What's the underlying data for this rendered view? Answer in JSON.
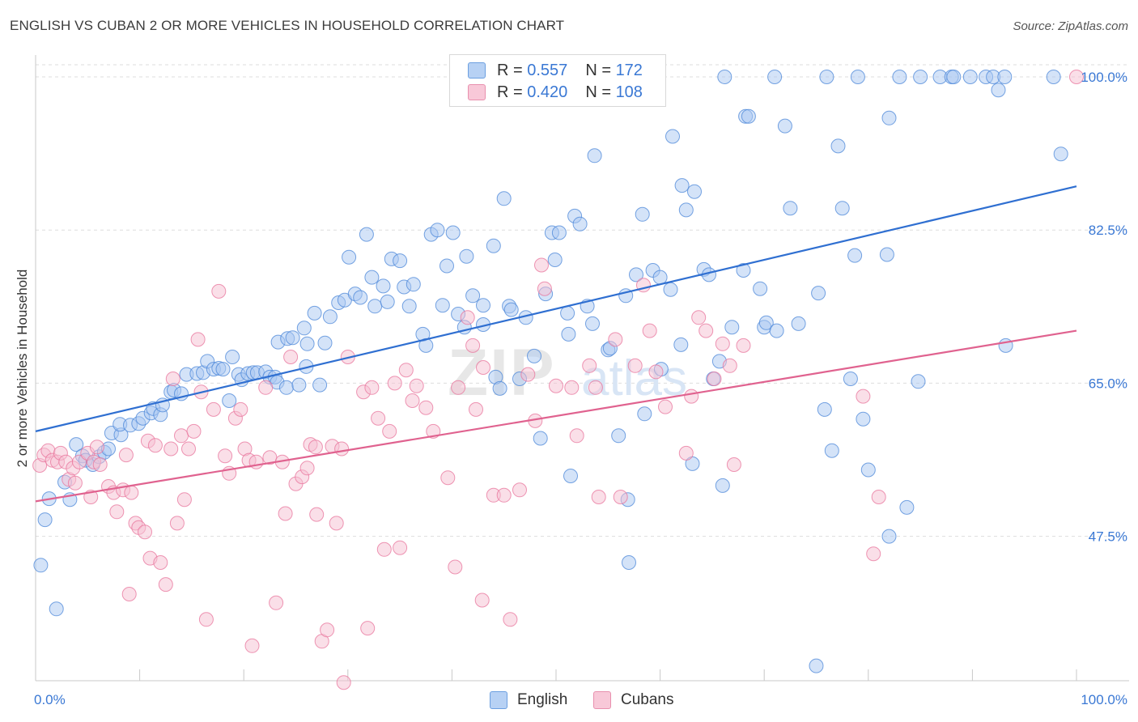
{
  "header": {
    "title": "ENGLISH VS CUBAN 2 OR MORE VEHICLES IN HOUSEHOLD CORRELATION CHART",
    "source": "Source: ZipAtlas.com"
  },
  "watermark": "ZIPatlas",
  "colors": {
    "english": "#4a86d8",
    "english_fill": "#a9c8f2",
    "cubans": "#e8739b",
    "cubans_fill": "#f6bfd1",
    "axis_tick_label": "#3a78d4",
    "grid": "#dddddd"
  },
  "legend": {
    "rows": [
      {
        "r_label": "R =",
        "r_value": "0.557",
        "n_label": "N =",
        "n_value": "172"
      },
      {
        "r_label": "R =",
        "r_value": "0.420",
        "n_label": "N =",
        "n_value": "108"
      }
    ]
  },
  "bottom_legend": {
    "english": "English",
    "cubans": "Cubans"
  },
  "chart_data": {
    "type": "scatter",
    "title": "ENGLISH VS CUBAN 2 OR MORE VEHICLES IN HOUSEHOLD CORRELATION CHART",
    "ylabel": "2 or more Vehicles in Household",
    "xlabel": "",
    "xlim": [
      0,
      100
    ],
    "ylim": [
      31,
      102.5
    ],
    "x_tick_labels": [
      "0.0%",
      "100.0%"
    ],
    "y_ticks": [
      47.5,
      65.0,
      82.5,
      100.0
    ],
    "y_tick_labels": [
      "47.5%",
      "65.0%",
      "82.5%",
      "100.0%"
    ],
    "grid": "horizontal dashed",
    "legend_position": "top-center",
    "series": [
      {
        "name": "English",
        "trend": {
          "x": [
            0,
            100
          ],
          "y": [
            59.5,
            87.5
          ]
        },
        "points": [
          [
            0.5,
            44.2
          ],
          [
            0.9,
            49.4
          ],
          [
            1.3,
            51.8
          ],
          [
            2.0,
            39.2
          ],
          [
            2.8,
            53.7
          ],
          [
            3.3,
            51.7
          ],
          [
            3.9,
            58.0
          ],
          [
            4.5,
            56.7
          ],
          [
            4.8,
            56.2
          ],
          [
            5.5,
            55.7
          ],
          [
            6.1,
            56.6
          ],
          [
            6.6,
            57.1
          ],
          [
            7.0,
            57.5
          ],
          [
            7.3,
            59.3
          ],
          [
            8.2,
            59.1
          ],
          [
            8.1,
            60.3
          ],
          [
            9.1,
            60.2
          ],
          [
            9.9,
            60.4
          ],
          [
            10.3,
            61.0
          ],
          [
            11.1,
            61.6
          ],
          [
            11.3,
            62.1
          ],
          [
            12.0,
            61.4
          ],
          [
            12.2,
            62.5
          ],
          [
            13.0,
            64.0
          ],
          [
            13.3,
            64.2
          ],
          [
            14.0,
            63.8
          ],
          [
            14.5,
            66.0
          ],
          [
            15.5,
            66.1
          ],
          [
            16.1,
            66.2
          ],
          [
            16.5,
            67.5
          ],
          [
            17.1,
            66.6
          ],
          [
            17.6,
            66.7
          ],
          [
            18.0,
            66.6
          ],
          [
            18.6,
            63.0
          ],
          [
            18.9,
            68.0
          ],
          [
            19.5,
            66.0
          ],
          [
            19.8,
            65.4
          ],
          [
            20.4,
            66.1
          ],
          [
            20.9,
            66.2
          ],
          [
            21.3,
            66.2
          ],
          [
            22.1,
            66.3
          ],
          [
            22.5,
            65.7
          ],
          [
            23.0,
            65.7
          ],
          [
            23.2,
            65.1
          ],
          [
            23.3,
            69.7
          ],
          [
            24.1,
            64.5
          ],
          [
            24.2,
            70.1
          ],
          [
            24.7,
            70.2
          ],
          [
            25.3,
            64.8
          ],
          [
            25.8,
            71.3
          ],
          [
            26.0,
            66.9
          ],
          [
            26.1,
            69.5
          ],
          [
            26.8,
            73.0
          ],
          [
            27.3,
            64.8
          ],
          [
            27.8,
            69.6
          ],
          [
            28.3,
            72.6
          ],
          [
            29.1,
            74.2
          ],
          [
            29.7,
            74.5
          ],
          [
            30.1,
            79.4
          ],
          [
            30.7,
            75.2
          ],
          [
            31.2,
            74.8
          ],
          [
            31.8,
            82.0
          ],
          [
            32.3,
            77.1
          ],
          [
            32.6,
            73.8
          ],
          [
            33.4,
            76.1
          ],
          [
            33.8,
            74.3
          ],
          [
            34.2,
            79.2
          ],
          [
            35.0,
            79.0
          ],
          [
            35.4,
            76.0
          ],
          [
            35.9,
            73.8
          ],
          [
            36.3,
            76.3
          ],
          [
            37.2,
            70.6
          ],
          [
            37.5,
            69.3
          ],
          [
            38.0,
            82.0
          ],
          [
            38.6,
            82.5
          ],
          [
            39.1,
            73.9
          ],
          [
            39.5,
            78.4
          ],
          [
            40.1,
            82.2
          ],
          [
            40.6,
            72.9
          ],
          [
            41.2,
            71.4
          ],
          [
            41.4,
            79.5
          ],
          [
            42.0,
            75.0
          ],
          [
            43.0,
            71.7
          ],
          [
            43.0,
            73.9
          ],
          [
            44.0,
            80.7
          ],
          [
            44.2,
            65.7
          ],
          [
            44.6,
            64.4
          ],
          [
            45.0,
            86.1
          ],
          [
            45.5,
            73.8
          ],
          [
            45.7,
            73.4
          ],
          [
            46.5,
            65.5
          ],
          [
            47.1,
            72.5
          ],
          [
            47.9,
            68.1
          ],
          [
            48.5,
            58.7
          ],
          [
            49.0,
            75.2
          ],
          [
            49.6,
            82.2
          ],
          [
            49.9,
            79.1
          ],
          [
            50.3,
            82.2
          ],
          [
            51.1,
            73.0
          ],
          [
            51.2,
            70.6
          ],
          [
            51.4,
            54.4
          ],
          [
            51.8,
            84.1
          ],
          [
            52.3,
            83.2
          ],
          [
            53.0,
            73.8
          ],
          [
            53.5,
            71.8
          ],
          [
            53.7,
            91.0
          ],
          [
            55.0,
            68.8
          ],
          [
            55.2,
            69.0
          ],
          [
            56.0,
            59.0
          ],
          [
            56.7,
            75.0
          ],
          [
            56.9,
            51.7
          ],
          [
            57.0,
            44.5
          ],
          [
            57.7,
            77.4
          ],
          [
            58.3,
            84.3
          ],
          [
            58.5,
            61.5
          ],
          [
            59.3,
            77.9
          ],
          [
            60.0,
            77.1
          ],
          [
            60.1,
            66.6
          ],
          [
            61.0,
            75.7
          ],
          [
            61.2,
            93.2
          ],
          [
            62.0,
            69.4
          ],
          [
            62.1,
            87.6
          ],
          [
            62.5,
            84.8
          ],
          [
            63.1,
            55.8
          ],
          [
            63.3,
            86.9
          ],
          [
            64.2,
            78.0
          ],
          [
            64.7,
            77.4
          ],
          [
            65.1,
            65.5
          ],
          [
            65.7,
            67.5
          ],
          [
            66.0,
            53.3
          ],
          [
            66.9,
            71.4
          ],
          [
            68.0,
            77.9
          ],
          [
            68.2,
            95.5
          ],
          [
            68.5,
            95.5
          ],
          [
            69.6,
            75.8
          ],
          [
            70.0,
            71.4
          ],
          [
            70.2,
            71.9
          ],
          [
            71.2,
            71.0
          ],
          [
            72.0,
            94.4
          ],
          [
            72.5,
            85.0
          ],
          [
            73.3,
            71.8
          ],
          [
            75.0,
            32.7
          ],
          [
            75.2,
            75.3
          ],
          [
            75.8,
            62.0
          ],
          [
            76.5,
            57.3
          ],
          [
            77.1,
            92.1
          ],
          [
            77.5,
            85.0
          ],
          [
            78.3,
            65.5
          ],
          [
            78.7,
            79.6
          ],
          [
            79.5,
            60.9
          ],
          [
            80.0,
            55.1
          ],
          [
            81.8,
            79.7
          ],
          [
            82.0,
            95.3
          ],
          [
            82.0,
            47.5
          ],
          [
            83.7,
            50.8
          ],
          [
            84.8,
            65.2
          ],
          [
            85.0,
            100.0
          ],
          [
            86.9,
            100.0
          ],
          [
            88.0,
            100.0
          ],
          [
            89.8,
            100.0
          ],
          [
            91.3,
            100.0
          ],
          [
            92.0,
            100.0
          ],
          [
            92.5,
            98.5
          ],
          [
            93.1,
            100.0
          ],
          [
            93.2,
            69.3
          ],
          [
            97.8,
            100.0
          ],
          [
            98.5,
            91.2
          ],
          [
            66.2,
            100.0
          ],
          [
            71.0,
            100.0
          ],
          [
            76.0,
            100.0
          ],
          [
            79.0,
            100.0
          ],
          [
            83.0,
            100.0
          ],
          [
            88.2,
            100.0
          ]
        ]
      },
      {
        "name": "Cubans",
        "trend": {
          "x": [
            0,
            100
          ],
          "y": [
            51.5,
            71.0
          ]
        },
        "points": [
          [
            0.4,
            55.6
          ],
          [
            0.8,
            56.8
          ],
          [
            1.2,
            57.3
          ],
          [
            1.6,
            56.2
          ],
          [
            2.1,
            56.0
          ],
          [
            2.4,
            57.0
          ],
          [
            2.9,
            56.0
          ],
          [
            3.2,
            54.0
          ],
          [
            3.6,
            55.3
          ],
          [
            3.8,
            53.6
          ],
          [
            4.2,
            56.0
          ],
          [
            5.0,
            57.0
          ],
          [
            5.3,
            52.0
          ],
          [
            5.6,
            56.0
          ],
          [
            5.9,
            57.7
          ],
          [
            6.2,
            55.7
          ],
          [
            7.0,
            53.2
          ],
          [
            7.5,
            52.5
          ],
          [
            7.8,
            50.3
          ],
          [
            8.4,
            52.8
          ],
          [
            8.7,
            56.8
          ],
          [
            9.0,
            40.9
          ],
          [
            9.2,
            52.5
          ],
          [
            9.6,
            49.0
          ],
          [
            9.9,
            48.5
          ],
          [
            10.5,
            48.0
          ],
          [
            10.8,
            58.4
          ],
          [
            11.0,
            45.0
          ],
          [
            11.5,
            57.9
          ],
          [
            12.0,
            44.5
          ],
          [
            12.5,
            42.0
          ],
          [
            13.0,
            57.5
          ],
          [
            13.2,
            65.5
          ],
          [
            13.6,
            49.0
          ],
          [
            14.0,
            59.0
          ],
          [
            14.3,
            51.7
          ],
          [
            14.7,
            57.5
          ],
          [
            15.2,
            59.5
          ],
          [
            15.6,
            70.0
          ],
          [
            15.9,
            64.0
          ],
          [
            16.4,
            38.0
          ],
          [
            17.1,
            62.0
          ],
          [
            17.6,
            75.5
          ],
          [
            18.2,
            56.7
          ],
          [
            18.6,
            54.7
          ],
          [
            19.2,
            61.0
          ],
          [
            19.7,
            62.0
          ],
          [
            20.1,
            57.5
          ],
          [
            20.5,
            56.2
          ],
          [
            20.8,
            35.0
          ],
          [
            21.2,
            56.0
          ],
          [
            22.1,
            64.5
          ],
          [
            22.5,
            56.5
          ],
          [
            23.1,
            39.9
          ],
          [
            23.7,
            56.0
          ],
          [
            24.0,
            50.1
          ],
          [
            24.5,
            68.0
          ],
          [
            25.0,
            53.5
          ],
          [
            25.6,
            54.3
          ],
          [
            26.1,
            55.3
          ],
          [
            26.4,
            58.0
          ],
          [
            26.9,
            57.7
          ],
          [
            27.0,
            50.0
          ],
          [
            27.5,
            35.5
          ],
          [
            28.0,
            36.8
          ],
          [
            28.5,
            57.8
          ],
          [
            28.9,
            49.0
          ],
          [
            29.4,
            57.5
          ],
          [
            29.6,
            30.8
          ],
          [
            30.0,
            68.0
          ],
          [
            31.5,
            64.0
          ],
          [
            31.9,
            37.0
          ],
          [
            32.3,
            64.5
          ],
          [
            32.9,
            61.0
          ],
          [
            33.5,
            46.0
          ],
          [
            34.0,
            59.5
          ],
          [
            34.5,
            65.0
          ],
          [
            35.0,
            46.2
          ],
          [
            35.6,
            66.5
          ],
          [
            36.2,
            63.0
          ],
          [
            36.6,
            64.7
          ],
          [
            37.5,
            62.2
          ],
          [
            38.2,
            59.5
          ],
          [
            39.6,
            54.2
          ],
          [
            40.3,
            44.0
          ],
          [
            40.6,
            64.5
          ],
          [
            41.5,
            72.5
          ],
          [
            42.0,
            69.3
          ],
          [
            42.3,
            62.0
          ],
          [
            42.9,
            40.2
          ],
          [
            43.0,
            66.8
          ],
          [
            44.0,
            52.2
          ],
          [
            45.0,
            52.2
          ],
          [
            45.6,
            38.0
          ],
          [
            46.5,
            52.8
          ],
          [
            47.3,
            66.0
          ],
          [
            48.0,
            60.7
          ],
          [
            48.6,
            78.5
          ],
          [
            48.9,
            75.8
          ],
          [
            50.0,
            64.7
          ],
          [
            51.5,
            64.5
          ],
          [
            52.0,
            59.0
          ],
          [
            53.2,
            67.0
          ],
          [
            53.8,
            64.5
          ],
          [
            54.1,
            52.0
          ],
          [
            55.7,
            70.0
          ],
          [
            56.2,
            52.0
          ],
          [
            57.6,
            67.0
          ],
          [
            58.4,
            76.2
          ],
          [
            59.0,
            71.0
          ],
          [
            59.6,
            66.3
          ],
          [
            60.5,
            62.3
          ],
          [
            62.5,
            57.0
          ],
          [
            63.0,
            63.5
          ],
          [
            63.7,
            72.5
          ],
          [
            64.4,
            71.0
          ],
          [
            65.2,
            65.5
          ],
          [
            66.0,
            69.5
          ],
          [
            66.7,
            67.0
          ],
          [
            67.1,
            55.7
          ],
          [
            68.0,
            69.3
          ],
          [
            79.5,
            63.5
          ],
          [
            80.5,
            45.5
          ],
          [
            81.0,
            52.0
          ],
          [
            100.0,
            100.0
          ]
        ]
      }
    ]
  }
}
